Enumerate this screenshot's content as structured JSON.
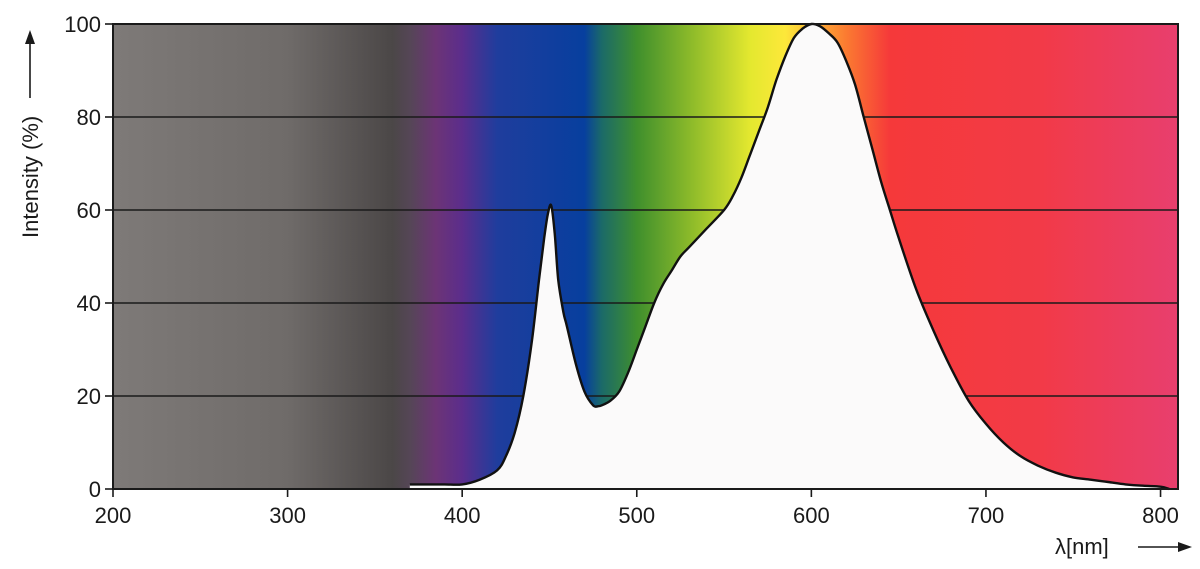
{
  "chart_data": {
    "type": "area",
    "title": "",
    "xlabel": "λ[nm]",
    "ylabel": "Intensity (%)",
    "xlim": [
      200,
      810
    ],
    "ylim": [
      0,
      100
    ],
    "x_ticks": [
      200,
      300,
      400,
      500,
      600,
      700,
      800
    ],
    "y_ticks": [
      0,
      20,
      40,
      60,
      80,
      100
    ],
    "grid": "horizontal",
    "legend": "none",
    "background": "visible light spectrum gradient (grey ultraviolet region, violet, blue, green, yellow, orange, red)",
    "spectrum_colors": [
      {
        "nm": 200,
        "color": "#7e7a78"
      },
      {
        "nm": 300,
        "color": "#6f6b69"
      },
      {
        "nm": 360,
        "color": "#4b4747"
      },
      {
        "nm": 370,
        "color": "#554656"
      },
      {
        "nm": 385,
        "color": "#6c3476"
      },
      {
        "nm": 400,
        "color": "#5b2d8c"
      },
      {
        "nm": 420,
        "color": "#1f3d9d"
      },
      {
        "nm": 470,
        "color": "#073f9e"
      },
      {
        "nm": 480,
        "color": "#1b6a68"
      },
      {
        "nm": 500,
        "color": "#3f8f2d"
      },
      {
        "nm": 530,
        "color": "#8ab92a"
      },
      {
        "nm": 565,
        "color": "#e4e82f"
      },
      {
        "nm": 585,
        "color": "#fde83a"
      },
      {
        "nm": 620,
        "color": "#fb7a31"
      },
      {
        "nm": 645,
        "color": "#f5393a"
      },
      {
        "nm": 730,
        "color": "#f23a47"
      },
      {
        "nm": 810,
        "color": "#e83f6e"
      }
    ],
    "series": [
      {
        "fill": "#fbfafa",
        "x": [
          370,
          380,
          390,
          400,
          410,
          420,
          425,
          430,
          435,
          440,
          444,
          447,
          449,
          451,
          453,
          455,
          458,
          460,
          465,
          470,
          475,
          478,
          480,
          485,
          490,
          495,
          500,
          505,
          510,
          515,
          520,
          525,
          530,
          540,
          550,
          555,
          560,
          565,
          570,
          575,
          580,
          585,
          590,
          595,
          600,
          605,
          610,
          615,
          620,
          625,
          630,
          635,
          640,
          645,
          650,
          660,
          670,
          680,
          690,
          700,
          710,
          720,
          730,
          740,
          750,
          760,
          770,
          780,
          790,
          800,
          805
        ],
        "values": [
          1,
          1,
          1,
          1,
          2,
          4,
          7,
          12,
          20,
          32,
          45,
          54,
          59,
          61,
          55,
          45,
          38,
          35,
          27,
          21,
          18,
          17.8,
          18,
          19,
          21,
          25,
          30,
          35,
          40,
          44,
          47,
          50,
          52,
          56,
          60,
          63,
          67,
          72,
          77,
          82,
          88,
          93,
          97,
          99,
          100,
          99.5,
          98,
          96,
          92,
          87,
          80,
          73,
          66,
          60,
          54,
          43,
          34,
          26,
          19,
          14,
          10,
          7,
          5,
          3.5,
          2.5,
          2,
          1.5,
          1,
          0.7,
          0.5,
          0
        ]
      }
    ]
  }
}
